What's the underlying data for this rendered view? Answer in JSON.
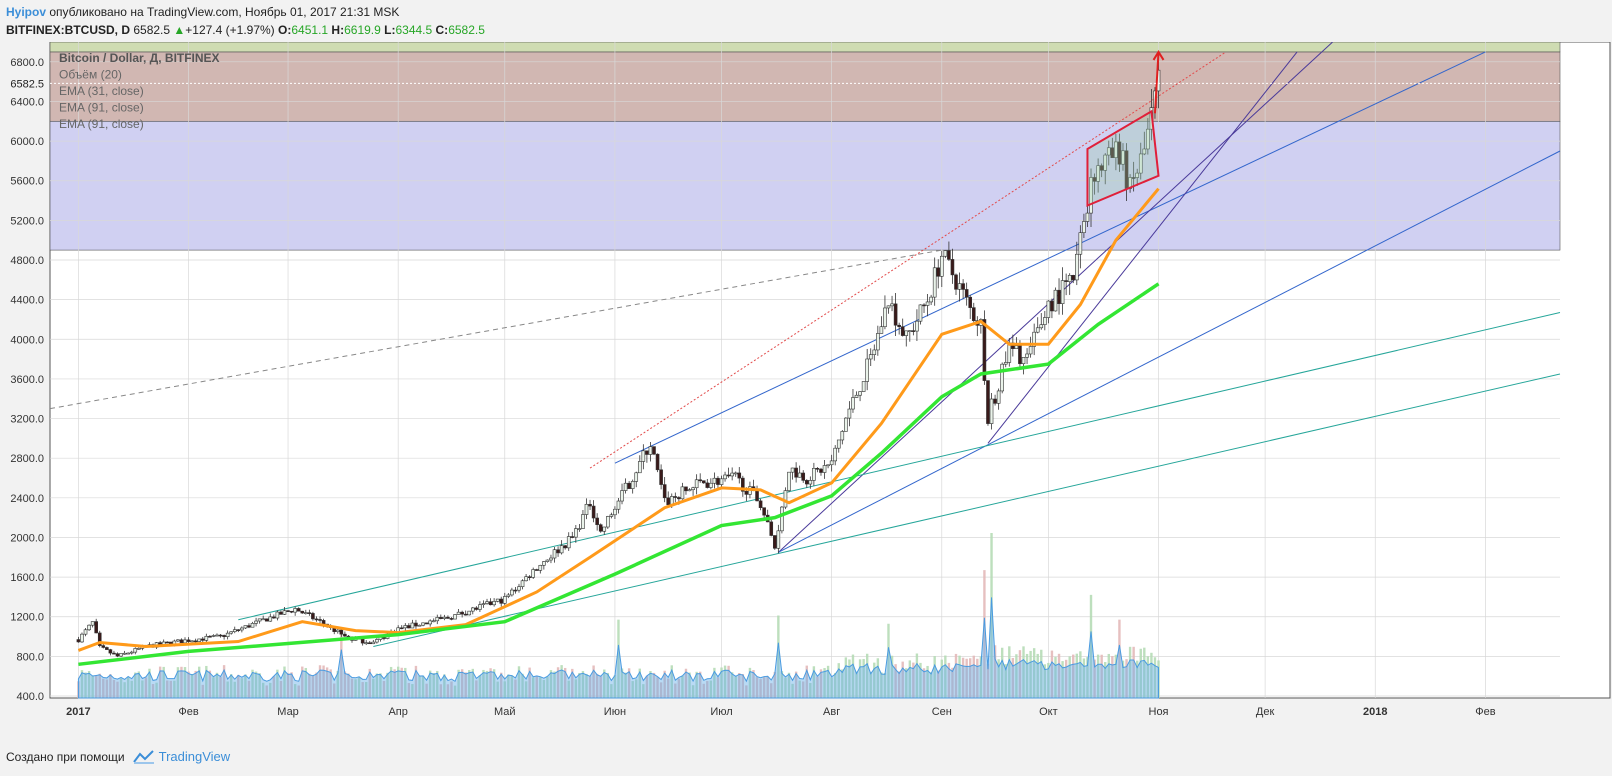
{
  "header": {
    "author": "Hyipov",
    "published_text": "опубликовано на TradingView.com, Ноябрь 01, 2017 21:31 MSK",
    "symbol": "BITFINEX:BTCUSD, D",
    "last": "6582.5",
    "change": "+127.4 (+1.97%)",
    "open_label": "O:",
    "open": "6451.1",
    "high_label": "H:",
    "high": "6619.9",
    "low_label": "L:",
    "low": "6344.5",
    "close_label": "C:",
    "close": "6582.5"
  },
  "footer": {
    "created_with": "Создано при помощи",
    "brand": "TradingView"
  },
  "chart_data": {
    "type": "candlestick",
    "legend": [
      "Bitcoin / Dollar, Д, BITFINEX",
      "Объём (20)",
      "EMA (31, close)",
      "EMA (91, close)",
      "EMA (91, close)"
    ],
    "y_ticks": [
      400,
      800,
      1200,
      1600,
      2000,
      2400,
      2800,
      3200,
      3600,
      4000,
      4400,
      4800,
      5200,
      5600,
      6000,
      6400,
      6800
    ],
    "last_price_label": "6582.5",
    "ylim": [
      380,
      7000
    ],
    "x_ticks": [
      {
        "label": "2017",
        "date": "2017-01-01"
      },
      {
        "label": "Фев",
        "date": "2017-02-01"
      },
      {
        "label": "Мар",
        "date": "2017-03-01"
      },
      {
        "label": "Апр",
        "date": "2017-04-01"
      },
      {
        "label": "Май",
        "date": "2017-05-01"
      },
      {
        "label": "Июн",
        "date": "2017-06-01"
      },
      {
        "label": "Июл",
        "date": "2017-07-01"
      },
      {
        "label": "Авг",
        "date": "2017-08-01"
      },
      {
        "label": "Сен",
        "date": "2017-09-01"
      },
      {
        "label": "Окт",
        "date": "2017-10-01"
      },
      {
        "label": "Ноя",
        "date": "2017-11-01"
      },
      {
        "label": "Дек",
        "date": "2017-12-01"
      },
      {
        "label": "2018",
        "date": "2018-01-01"
      },
      {
        "label": "Фев",
        "date": "2018-02-01"
      }
    ],
    "xlim": [
      "2016-12-24",
      "2018-02-22"
    ],
    "price_path": [
      [
        "2017-01-01",
        970
      ],
      [
        "2017-01-05",
        1140
      ],
      [
        "2017-01-07",
        890
      ],
      [
        "2017-01-12",
        800
      ],
      [
        "2017-01-20",
        900
      ],
      [
        "2017-01-31",
        960
      ],
      [
        "2017-02-10",
        1000
      ],
      [
        "2017-02-23",
        1180
      ],
      [
        "2017-03-03",
        1280
      ],
      [
        "2017-03-10",
        1150
      ],
      [
        "2017-03-18",
        980
      ],
      [
        "2017-03-25",
        940
      ],
      [
        "2017-04-01",
        1080
      ],
      [
        "2017-04-15",
        1190
      ],
      [
        "2017-05-01",
        1380
      ],
      [
        "2017-05-10",
        1700
      ],
      [
        "2017-05-20",
        2000
      ],
      [
        "2017-05-25",
        2350
      ],
      [
        "2017-05-28",
        2050
      ],
      [
        "2017-06-05",
        2550
      ],
      [
        "2017-06-11",
        2950
      ],
      [
        "2017-06-15",
        2350
      ],
      [
        "2017-06-25",
        2550
      ],
      [
        "2017-07-05",
        2600
      ],
      [
        "2017-07-12",
        2350
      ],
      [
        "2017-07-16",
        1900
      ],
      [
        "2017-07-20",
        2700
      ],
      [
        "2017-07-25",
        2600
      ],
      [
        "2017-08-01",
        2750
      ],
      [
        "2017-08-05",
        3200
      ],
      [
        "2017-08-12",
        3800
      ],
      [
        "2017-08-17",
        4400
      ],
      [
        "2017-08-22",
        4000
      ],
      [
        "2017-08-28",
        4400
      ],
      [
        "2017-09-01",
        4850
      ],
      [
        "2017-09-05",
        4600
      ],
      [
        "2017-09-09",
        4300
      ],
      [
        "2017-09-12",
        4150
      ],
      [
        "2017-09-14",
        3200
      ],
      [
        "2017-09-20",
        3900
      ],
      [
        "2017-09-25",
        3800
      ],
      [
        "2017-10-01",
        4350
      ],
      [
        "2017-10-08",
        4600
      ],
      [
        "2017-10-12",
        5400
      ],
      [
        "2017-10-14",
        5700
      ],
      [
        "2017-10-21",
        5900
      ],
      [
        "2017-10-24",
        5500
      ],
      [
        "2017-10-28",
        5900
      ],
      [
        "2017-11-01",
        6582.5
      ]
    ],
    "ema31": [
      [
        "2017-01-01",
        860
      ],
      [
        "2017-01-07",
        940
      ],
      [
        "2017-01-20",
        900
      ],
      [
        "2017-02-15",
        950
      ],
      [
        "2017-03-05",
        1150
      ],
      [
        "2017-03-20",
        1060
      ],
      [
        "2017-04-01",
        1040
      ],
      [
        "2017-04-20",
        1120
      ],
      [
        "2017-05-10",
        1450
      ],
      [
        "2017-05-25",
        1800
      ],
      [
        "2017-06-15",
        2300
      ],
      [
        "2017-07-01",
        2500
      ],
      [
        "2017-07-12",
        2480
      ],
      [
        "2017-07-20",
        2350
      ],
      [
        "2017-08-01",
        2550
      ],
      [
        "2017-08-15",
        3150
      ],
      [
        "2017-09-01",
        4050
      ],
      [
        "2017-09-12",
        4180
      ],
      [
        "2017-09-20",
        3950
      ],
      [
        "2017-10-01",
        3950
      ],
      [
        "2017-10-10",
        4350
      ],
      [
        "2017-10-20",
        5000
      ],
      [
        "2017-11-01",
        5520
      ]
    ],
    "ema91": [
      [
        "2017-01-01",
        720
      ],
      [
        "2017-02-01",
        850
      ],
      [
        "2017-03-01",
        930
      ],
      [
        "2017-04-01",
        1020
      ],
      [
        "2017-05-01",
        1150
      ],
      [
        "2017-06-01",
        1630
      ],
      [
        "2017-07-01",
        2120
      ],
      [
        "2017-07-16",
        2200
      ],
      [
        "2017-08-01",
        2420
      ],
      [
        "2017-08-15",
        2850
      ],
      [
        "2017-09-01",
        3420
      ],
      [
        "2017-09-12",
        3650
      ],
      [
        "2017-10-01",
        3750
      ],
      [
        "2017-10-15",
        4150
      ],
      [
        "2017-11-01",
        4560
      ]
    ],
    "volume_scale_top": 2000,
    "volume_spikes": [
      [
        "2017-09-15",
        2000
      ],
      [
        "2017-09-13",
        1550
      ],
      [
        "2017-10-13",
        1250
      ],
      [
        "2017-07-17",
        1000
      ],
      [
        "2017-06-02",
        950
      ],
      [
        "2017-08-17",
        900
      ],
      [
        "2017-03-16",
        850
      ],
      [
        "2017-10-21",
        950
      ]
    ],
    "zones": [
      {
        "from": 4900,
        "to": 6200,
        "color": "#c8c8f0"
      },
      {
        "from": 6200,
        "to": 6900,
        "color": "#c9aaa5"
      },
      {
        "from": 6900,
        "to": 7000,
        "color": "#c7d6a4"
      }
    ],
    "trendlines": [
      {
        "from": [
          "2016-12-24",
          3300
        ],
        "to": [
          "2017-09-01",
          4900
        ],
        "color": "#888888",
        "style": "dashed"
      },
      {
        "from": [
          "2017-05-25",
          2700
        ],
        "to": [
          "2017-11-20",
          6900
        ],
        "color": "#e24b4b",
        "style": "dotted"
      },
      {
        "from": [
          "2017-06-01",
          2750
        ],
        "to": [
          "2018-02-01",
          6900
        ],
        "color": "#3366cc",
        "style": "solid"
      },
      {
        "from": [
          "2017-07-17",
          1850
        ],
        "to": [
          "2017-12-20",
          7000
        ],
        "color": "#4a3a9a",
        "style": "solid"
      },
      {
        "from": [
          "2017-09-14",
          2950
        ],
        "to": [
          "2017-12-10",
          6900
        ],
        "color": "#4a3a9a",
        "style": "solid"
      },
      {
        "from": [
          "2017-07-17",
          1850
        ],
        "to": [
          "2018-02-22",
          5900
        ],
        "color": "#3366cc",
        "style": "solid"
      },
      {
        "from": [
          "2017-02-15",
          1170
        ],
        "to": [
          "2018-02-22",
          4270
        ],
        "color": "#26a69a",
        "style": "solid"
      },
      {
        "from": [
          "2017-03-25",
          900
        ],
        "to": [
          "2018-02-22",
          3650
        ],
        "color": "#26a69a",
        "style": "solid"
      }
    ],
    "pennant": [
      [
        "2017-10-12",
        5920
      ],
      [
        "2017-10-30",
        6300
      ],
      [
        "2017-11-01",
        5650
      ],
      [
        "2017-10-12",
        5350
      ]
    ],
    "target_arrow": {
      "from": [
        "2017-10-31",
        6280
      ],
      "to": [
        "2017-11-01",
        6900
      ],
      "color": "#e02020"
    }
  }
}
